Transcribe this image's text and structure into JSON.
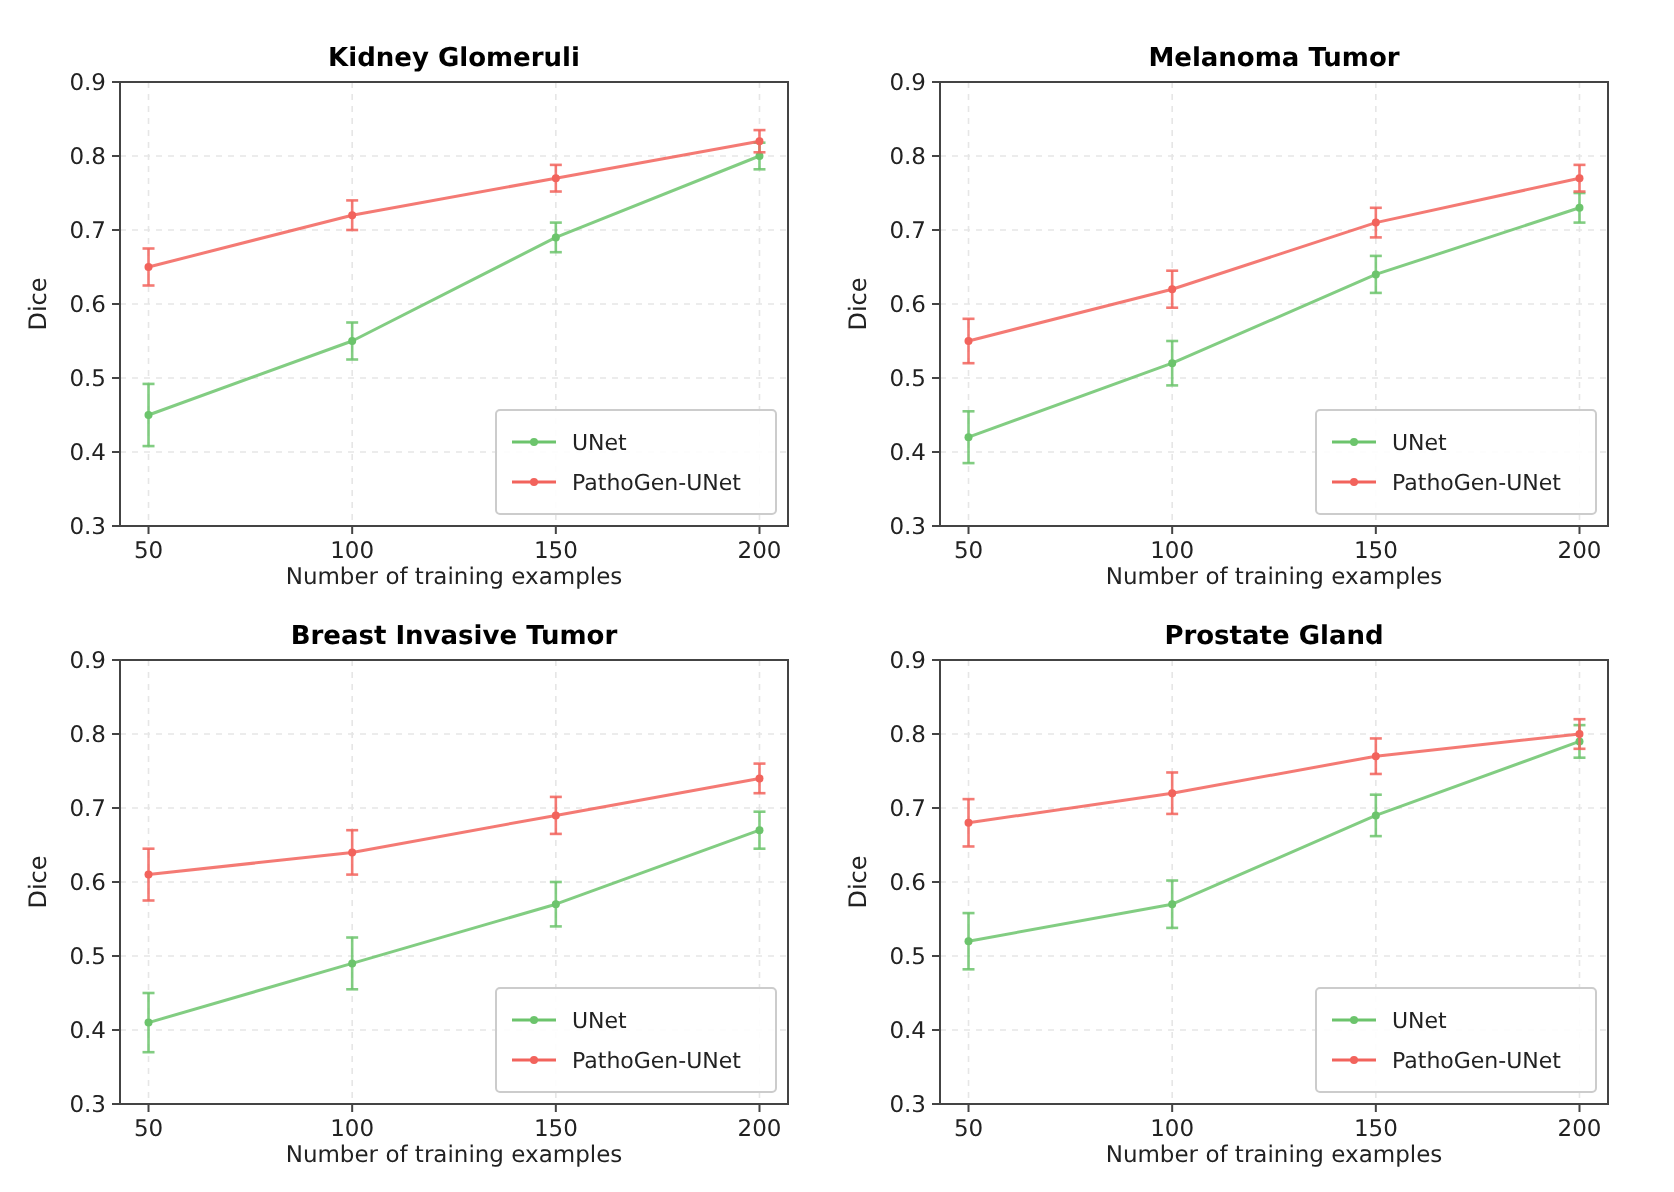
{
  "chart_data": [
    {
      "type": "line",
      "title": "Kidney Glomeruli",
      "xlabel": "Number of training examples",
      "ylabel": "Dice",
      "x": [
        50,
        100,
        150,
        200
      ],
      "xlim": [
        43,
        207
      ],
      "xticks": [
        50,
        100,
        150,
        200
      ],
      "ylim": [
        0.3,
        0.9
      ],
      "yticks": [
        0.3,
        0.4,
        0.5,
        0.6,
        0.7,
        0.8,
        0.9
      ],
      "grid": true,
      "legend": "bottom right",
      "marker": "circle",
      "line_style": "solid",
      "series": [
        {
          "name": "UNet",
          "color": "#6cc46c",
          "values": [
            0.45,
            0.55,
            0.69,
            0.8
          ],
          "errors": [
            0.042,
            0.025,
            0.02,
            0.018
          ]
        },
        {
          "name": "PathoGen-UNet",
          "color": "#f2635c",
          "values": [
            0.65,
            0.72,
            0.77,
            0.82
          ],
          "errors": [
            0.025,
            0.02,
            0.018,
            0.015
          ]
        }
      ]
    },
    {
      "type": "line",
      "title": "Melanoma Tumor",
      "xlabel": "Number of training examples",
      "ylabel": "Dice",
      "x": [
        50,
        100,
        150,
        200
      ],
      "xlim": [
        43,
        207
      ],
      "xticks": [
        50,
        100,
        150,
        200
      ],
      "ylim": [
        0.3,
        0.9
      ],
      "yticks": [
        0.3,
        0.4,
        0.5,
        0.6,
        0.7,
        0.8,
        0.9
      ],
      "grid": true,
      "legend": "bottom right",
      "marker": "circle",
      "line_style": "solid",
      "series": [
        {
          "name": "UNet",
          "color": "#6cc46c",
          "values": [
            0.42,
            0.52,
            0.64,
            0.73
          ],
          "errors": [
            0.035,
            0.03,
            0.025,
            0.02
          ]
        },
        {
          "name": "PathoGen-UNet",
          "color": "#f2635c",
          "values": [
            0.55,
            0.62,
            0.71,
            0.77
          ],
          "errors": [
            0.03,
            0.025,
            0.02,
            0.018
          ]
        }
      ]
    },
    {
      "type": "line",
      "title": "Breast Invasive Tumor",
      "xlabel": "Number of training examples",
      "ylabel": "Dice",
      "x": [
        50,
        100,
        150,
        200
      ],
      "xlim": [
        43,
        207
      ],
      "xticks": [
        50,
        100,
        150,
        200
      ],
      "ylim": [
        0.3,
        0.9
      ],
      "yticks": [
        0.3,
        0.4,
        0.5,
        0.6,
        0.7,
        0.8,
        0.9
      ],
      "grid": true,
      "legend": "bottom right",
      "marker": "circle",
      "line_style": "solid",
      "series": [
        {
          "name": "UNet",
          "color": "#6cc46c",
          "values": [
            0.41,
            0.49,
            0.57,
            0.67
          ],
          "errors": [
            0.04,
            0.035,
            0.03,
            0.025
          ]
        },
        {
          "name": "PathoGen-UNet",
          "color": "#f2635c",
          "values": [
            0.61,
            0.64,
            0.69,
            0.74
          ],
          "errors": [
            0.035,
            0.03,
            0.025,
            0.02
          ]
        }
      ]
    },
    {
      "type": "line",
      "title": "Prostate Gland",
      "xlabel": "Number of training examples",
      "ylabel": "Dice",
      "x": [
        50,
        100,
        150,
        200
      ],
      "xlim": [
        43,
        207
      ],
      "xticks": [
        50,
        100,
        150,
        200
      ],
      "ylim": [
        0.3,
        0.9
      ],
      "yticks": [
        0.3,
        0.4,
        0.5,
        0.6,
        0.7,
        0.8,
        0.9
      ],
      "grid": true,
      "legend": "bottom right",
      "marker": "circle",
      "line_style": "solid",
      "series": [
        {
          "name": "UNet",
          "color": "#6cc46c",
          "values": [
            0.52,
            0.57,
            0.69,
            0.79
          ],
          "errors": [
            0.038,
            0.032,
            0.028,
            0.022
          ]
        },
        {
          "name": "PathoGen-UNet",
          "color": "#f2635c",
          "values": [
            0.68,
            0.72,
            0.77,
            0.8
          ],
          "errors": [
            0.032,
            0.028,
            0.024,
            0.02
          ]
        }
      ]
    }
  ]
}
